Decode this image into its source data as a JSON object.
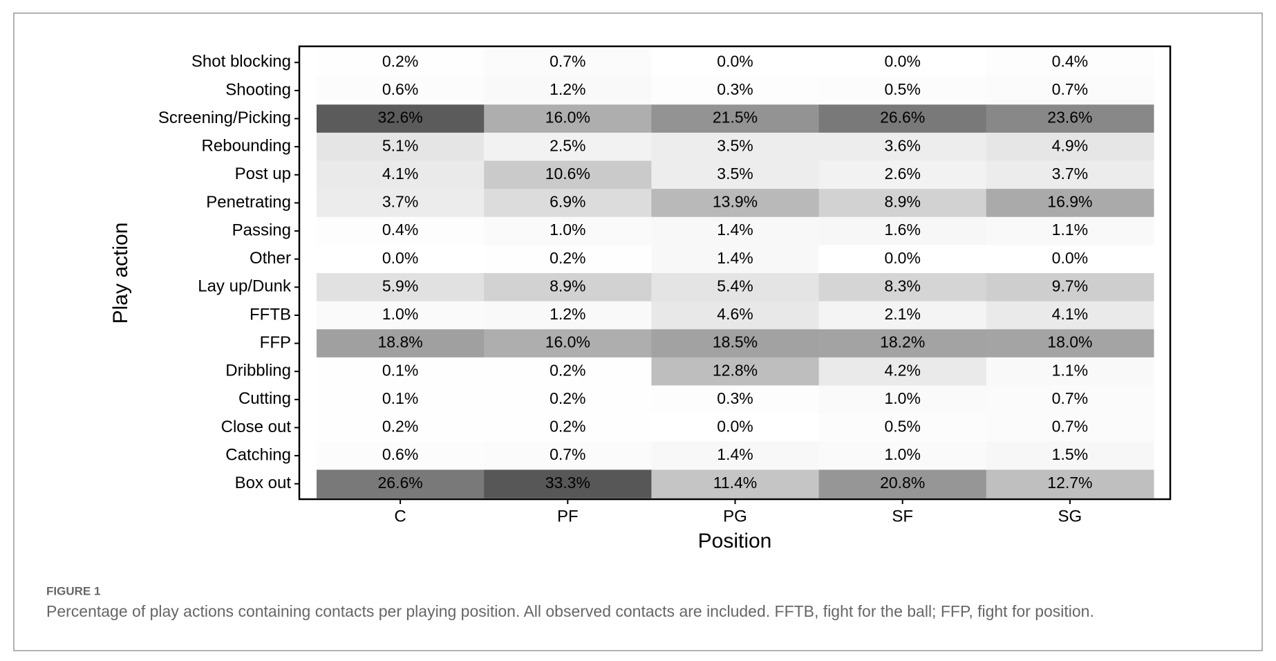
{
  "chart_data": {
    "type": "heatmap",
    "x_categories": [
      "C",
      "PF",
      "PG",
      "SF",
      "SG"
    ],
    "y_categories": [
      "Shot blocking",
      "Shooting",
      "Screening/Picking",
      "Rebounding",
      "Post up",
      "Penetrating",
      "Passing",
      "Other",
      "Lay up/Dunk",
      "FFTB",
      "FFP",
      "Dribbling",
      "Cutting",
      "Close out",
      "Catching",
      "Box out"
    ],
    "values": [
      [
        0.2,
        0.7,
        0.0,
        0.0,
        0.4
      ],
      [
        0.6,
        1.2,
        0.3,
        0.5,
        0.7
      ],
      [
        32.6,
        16.0,
        21.5,
        26.6,
        23.6
      ],
      [
        5.1,
        2.5,
        3.5,
        3.6,
        4.9
      ],
      [
        4.1,
        10.6,
        3.5,
        2.6,
        3.7
      ],
      [
        3.7,
        6.9,
        13.9,
        8.9,
        16.9
      ],
      [
        0.4,
        1.0,
        1.4,
        1.6,
        1.1
      ],
      [
        0.0,
        0.2,
        1.4,
        0.0,
        0.0
      ],
      [
        5.9,
        8.9,
        5.4,
        8.3,
        9.7
      ],
      [
        1.0,
        1.2,
        4.6,
        2.1,
        4.1
      ],
      [
        18.8,
        16.0,
        18.5,
        18.2,
        18.0
      ],
      [
        0.1,
        0.2,
        12.8,
        4.2,
        1.1
      ],
      [
        0.1,
        0.2,
        0.3,
        1.0,
        0.7
      ],
      [
        0.2,
        0.2,
        0.0,
        0.5,
        0.7
      ],
      [
        0.6,
        0.7,
        1.4,
        1.0,
        1.5
      ],
      [
        26.6,
        33.3,
        11.4,
        20.8,
        12.7
      ]
    ],
    "value_labels": [
      [
        "0.2%",
        "0.7%",
        "0.0%",
        "0.0%",
        "0.4%"
      ],
      [
        "0.6%",
        "1.2%",
        "0.3%",
        "0.5%",
        "0.7%"
      ],
      [
        "32.6%",
        "16.0%",
        "21.5%",
        "26.6%",
        "23.6%"
      ],
      [
        "5.1%",
        "2.5%",
        "3.5%",
        "3.6%",
        "4.9%"
      ],
      [
        "4.1%",
        "10.6%",
        "3.5%",
        "2.6%",
        "3.7%"
      ],
      [
        "3.7%",
        "6.9%",
        "13.9%",
        "8.9%",
        "16.9%"
      ],
      [
        "0.4%",
        "1.0%",
        "1.4%",
        "1.6%",
        "1.1%"
      ],
      [
        "0.0%",
        "0.2%",
        "1.4%",
        "0.0%",
        "0.0%"
      ],
      [
        "5.9%",
        "8.9%",
        "5.4%",
        "8.3%",
        "9.7%"
      ],
      [
        "1.0%",
        "1.2%",
        "4.6%",
        "2.1%",
        "4.1%"
      ],
      [
        "18.8%",
        "16.0%",
        "18.5%",
        "18.2%",
        "18.0%"
      ],
      [
        "0.1%",
        "0.2%",
        "12.8%",
        "4.2%",
        "1.1%"
      ],
      [
        "0.1%",
        "0.2%",
        "0.3%",
        "1.0%",
        "0.7%"
      ],
      [
        "0.2%",
        "0.2%",
        "0.0%",
        "0.5%",
        "0.7%"
      ],
      [
        "0.6%",
        "0.7%",
        "1.4%",
        "1.0%",
        "1.5%"
      ],
      [
        "26.6%",
        "33.3%",
        "11.4%",
        "20.8%",
        "12.7%"
      ]
    ],
    "xlabel": "Position",
    "ylabel": "Play action",
    "color_low": "#ffffff",
    "color_high": "#575757"
  },
  "figure_label": "FIGURE 1",
  "caption": "Percentage of play actions containing contacts per playing position. All observed contacts are included. FFTB, fight for the ball; FFP, fight for position."
}
